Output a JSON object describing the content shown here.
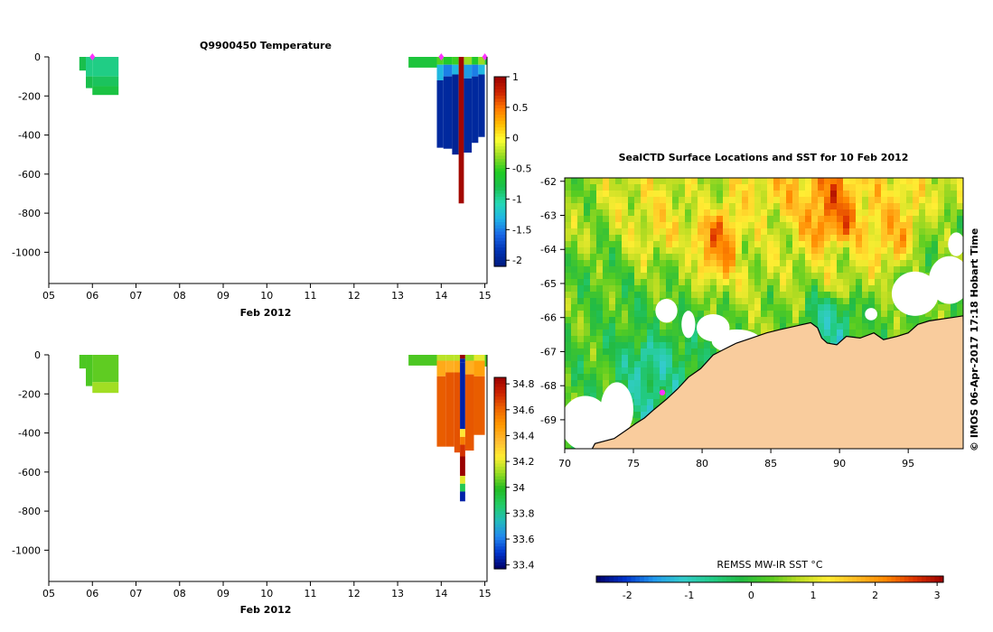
{
  "colors": {
    "temp_scale": [
      "#001a80",
      "#0033b3",
      "#1a66e6",
      "#1fb3e6",
      "#26d9b3",
      "#19bf4d",
      "#22cc22",
      "#99dd22",
      "#ffff33",
      "#ffbb00",
      "#ff7700",
      "#cc2200",
      "#990000"
    ],
    "salt_scale": [
      "#000066",
      "#0033cc",
      "#2288ee",
      "#22bbbb",
      "#22cc66",
      "#22bb22",
      "#99dd22",
      "#ffee33",
      "#ffbb33",
      "#ff9900",
      "#ee6600",
      "#cc2200",
      "#990000"
    ],
    "sst_scale": [
      "#000066",
      "#0033cc",
      "#2299ee",
      "#33cccc",
      "#22cc88",
      "#22bb44",
      "#55cc22",
      "#bbdd22",
      "#ffee33",
      "#ffbb22",
      "#ff8800",
      "#dd3300",
      "#990000"
    ],
    "land": "#f9cc9d",
    "cloud": "#ffffff",
    "marker": "#ff33ff"
  },
  "chart_data": [
    {
      "id": "temperature",
      "type": "heatmap",
      "title": "Q9900450  Temperature",
      "xlabel": "Feb 2012",
      "x_ticks": [
        "05",
        "06",
        "07",
        "08",
        "09",
        "10",
        "11",
        "12",
        "13",
        "14",
        "15"
      ],
      "xlim": [
        5,
        15.05
      ],
      "ylim": [
        -1160,
        0
      ],
      "y_ticks": [
        0,
        -200,
        -400,
        -600,
        -800,
        -1000
      ],
      "y_tick_labels": [
        "0",
        "-200",
        "-400",
        "-600",
        "-800",
        "-1000"
      ],
      "colorbar": {
        "min": -2.1,
        "max": 1,
        "ticks": [
          1,
          0.5,
          0,
          -0.5,
          -1,
          -1.5,
          -2
        ],
        "tick_labels": [
          "1",
          "0.5",
          "0",
          "-0.5",
          "-1",
          "-1.5",
          "-2"
        ]
      },
      "profile_markers_day": [
        6.0,
        14.0,
        15.0
      ],
      "profiles": [
        {
          "x0": 5.7,
          "x1": 5.85,
          "depth_max": 70,
          "segments": [
            [
              0,
              70,
              -0.8
            ]
          ]
        },
        {
          "x0": 5.85,
          "x1": 6.0,
          "depth_max": 160,
          "segments": [
            [
              0,
              100,
              -0.95
            ],
            [
              100,
              160,
              -0.8
            ]
          ]
        },
        {
          "x0": 6.0,
          "x1": 6.6,
          "depth_max": 195,
          "segments": [
            [
              0,
              100,
              -0.95
            ],
            [
              100,
              150,
              -0.85
            ],
            [
              150,
              195,
              -0.75
            ]
          ]
        },
        {
          "x0": 13.25,
          "x1": 13.9,
          "depth_max": 55,
          "segments": [
            [
              0,
              55,
              -0.7
            ]
          ]
        },
        {
          "x0": 13.9,
          "x1": 14.05,
          "depth_max": 465,
          "segments": [
            [
              0,
              40,
              -0.45
            ],
            [
              40,
              120,
              -1.3
            ],
            [
              120,
              465,
              -1.95
            ]
          ]
        },
        {
          "x0": 14.05,
          "x1": 14.25,
          "depth_max": 470,
          "segments": [
            [
              0,
              40,
              -0.6
            ],
            [
              40,
              100,
              -1.5
            ],
            [
              100,
              470,
              -1.95
            ]
          ]
        },
        {
          "x0": 14.25,
          "x1": 14.4,
          "depth_max": 500,
          "segments": [
            [
              0,
              40,
              -0.5
            ],
            [
              40,
              90,
              -1.3
            ],
            [
              90,
              500,
              -2.0
            ]
          ]
        },
        {
          "x0": 14.4,
          "x1": 14.52,
          "depth_max": 750,
          "segments": [
            [
              0,
              750,
              0.95
            ]
          ]
        },
        {
          "x0": 14.52,
          "x1": 14.7,
          "depth_max": 490,
          "segments": [
            [
              0,
              40,
              -0.3
            ],
            [
              40,
              110,
              -1.4
            ],
            [
              110,
              490,
              -1.95
            ]
          ]
        },
        {
          "x0": 14.7,
          "x1": 14.85,
          "depth_max": 440,
          "segments": [
            [
              0,
              40,
              -0.6
            ],
            [
              40,
              100,
              -1.5
            ],
            [
              100,
              440,
              -1.95
            ]
          ]
        },
        {
          "x0": 14.85,
          "x1": 15.0,
          "depth_max": 410,
          "segments": [
            [
              0,
              40,
              -0.3
            ],
            [
              40,
              90,
              -1.3
            ],
            [
              90,
              410,
              -1.95
            ]
          ]
        },
        {
          "x0": 15.0,
          "x1": 15.05,
          "depth_max": 40,
          "segments": [
            [
              0,
              40,
              -0.7
            ]
          ]
        }
      ]
    },
    {
      "id": "salinity",
      "type": "heatmap",
      "title": "",
      "xlabel": "Feb 2012",
      "x_ticks": [
        "05",
        "06",
        "07",
        "08",
        "09",
        "10",
        "11",
        "12",
        "13",
        "14",
        "15"
      ],
      "xlim": [
        5,
        15.05
      ],
      "ylim": [
        -1160,
        0
      ],
      "y_ticks": [
        0,
        -200,
        -400,
        -600,
        -800,
        -1000
      ],
      "y_tick_labels": [
        "0",
        "-200",
        "-400",
        "-600",
        "-800",
        "-1000"
      ],
      "colorbar": {
        "min": 33.37,
        "max": 34.85,
        "ticks": [
          34.8,
          34.6,
          34.4,
          34.2,
          34,
          33.8,
          33.6,
          33.4
        ],
        "tick_labels": [
          "34.8",
          "34.6",
          "34.4",
          "34.2",
          "34",
          "33.8",
          "33.6",
          "33.4"
        ]
      },
      "profiles": [
        {
          "x0": 5.7,
          "x1": 5.85,
          "depth_max": 70,
          "segments": [
            [
              0,
              70,
              34.03
            ]
          ]
        },
        {
          "x0": 5.85,
          "x1": 6.0,
          "depth_max": 160,
          "segments": [
            [
              0,
              160,
              34.03
            ]
          ]
        },
        {
          "x0": 6.0,
          "x1": 6.6,
          "depth_max": 195,
          "segments": [
            [
              0,
              140,
              34.05
            ],
            [
              140,
              195,
              34.12
            ]
          ]
        },
        {
          "x0": 13.25,
          "x1": 13.9,
          "depth_max": 55,
          "segments": [
            [
              0,
              55,
              34.03
            ]
          ]
        },
        {
          "x0": 13.9,
          "x1": 14.1,
          "depth_max": 470,
          "segments": [
            [
              0,
              30,
              34.15
            ],
            [
              30,
              110,
              34.42
            ],
            [
              110,
              470,
              34.62
            ]
          ]
        },
        {
          "x0": 14.1,
          "x1": 14.3,
          "depth_max": 470,
          "segments": [
            [
              0,
              30,
              34.15
            ],
            [
              30,
              90,
              34.4
            ],
            [
              90,
              470,
              34.63
            ]
          ]
        },
        {
          "x0": 14.3,
          "x1": 14.43,
          "depth_max": 500,
          "segments": [
            [
              0,
              30,
              34.15
            ],
            [
              30,
              90,
              34.42
            ],
            [
              90,
              500,
              34.64
            ]
          ]
        },
        {
          "x0": 14.43,
          "x1": 14.55,
          "depth_max": 750,
          "segments": [
            [
              0,
              20,
              34.85
            ],
            [
              20,
              40,
              33.45
            ],
            [
              40,
              380,
              33.45
            ],
            [
              380,
              420,
              34.25
            ],
            [
              420,
              460,
              34.55
            ],
            [
              460,
              520,
              34.7
            ],
            [
              520,
              620,
              34.85
            ],
            [
              620,
              660,
              34.2
            ],
            [
              660,
              700,
              33.9
            ],
            [
              700,
              750,
              33.45
            ]
          ]
        },
        {
          "x0": 14.55,
          "x1": 14.75,
          "depth_max": 490,
          "segments": [
            [
              0,
              30,
              34.1
            ],
            [
              30,
              100,
              34.4
            ],
            [
              100,
              490,
              34.63
            ]
          ]
        },
        {
          "x0": 14.75,
          "x1": 15.0,
          "depth_max": 410,
          "segments": [
            [
              0,
              30,
              34.2
            ],
            [
              30,
              110,
              34.45
            ],
            [
              110,
              410,
              34.62
            ]
          ]
        },
        {
          "x0": 15.0,
          "x1": 15.05,
          "depth_max": 60,
          "segments": [
            [
              0,
              60,
              34.03
            ]
          ]
        }
      ]
    },
    {
      "id": "sst_map",
      "type": "heatmap",
      "title": "SealCTD Surface Locations and SST for 10 Feb 2012",
      "xlim": [
        70,
        99
      ],
      "ylim": [
        -69.85,
        -61.9
      ],
      "x_ticks": [
        70,
        75,
        80,
        85,
        90,
        95
      ],
      "x_tick_labels": [
        "70",
        "75",
        "80",
        "85",
        "90",
        "95"
      ],
      "y_ticks": [
        -62,
        -63,
        -64,
        -65,
        -66,
        -67,
        -68,
        -69
      ],
      "y_tick_labels": [
        "-62",
        "-63",
        "-64",
        "-65",
        "-66",
        "-67",
        "-68",
        "-69"
      ],
      "sst_anchors": [
        {
          "lon": 70,
          "lat": -62,
          "v": 0.5
        },
        {
          "lon": 75,
          "lat": -62.2,
          "v": 1.0
        },
        {
          "lon": 80,
          "lat": -62.3,
          "v": 0.8
        },
        {
          "lon": 86,
          "lat": -62.3,
          "v": 1.5
        },
        {
          "lon": 93,
          "lat": -62.2,
          "v": 1.3
        },
        {
          "lon": 98,
          "lat": -62.2,
          "v": 1.0
        },
        {
          "lon": 71,
          "lat": -63.5,
          "v": 0.6
        },
        {
          "lon": 77,
          "lat": -63.3,
          "v": 1.2
        },
        {
          "lon": 81,
          "lat": -63.8,
          "v": 2.0
        },
        {
          "lon": 85,
          "lat": -63.5,
          "v": 0.9
        },
        {
          "lon": 89.5,
          "lat": -63,
          "v": 2.2
        },
        {
          "lon": 94,
          "lat": -63.4,
          "v": 1.6
        },
        {
          "lon": 98,
          "lat": -63.5,
          "v": 0.4
        },
        {
          "lon": 72,
          "lat": -64.8,
          "v": 0.2
        },
        {
          "lon": 78,
          "lat": -64.8,
          "v": 0.5
        },
        {
          "lon": 84,
          "lat": -64.6,
          "v": 0.8
        },
        {
          "lon": 90,
          "lat": -64.6,
          "v": 0.9
        },
        {
          "lon": 96,
          "lat": -64.8,
          "v": 0.3
        },
        {
          "lon": 71,
          "lat": -66,
          "v": 0.3
        },
        {
          "lon": 76,
          "lat": -66.2,
          "v": 0.1
        },
        {
          "lon": 80,
          "lat": -66.3,
          "v": 0.2
        },
        {
          "lon": 85,
          "lat": -65.8,
          "v": 0.5
        },
        {
          "lon": 89.5,
          "lat": -66.2,
          "v": -0.6
        },
        {
          "lon": 93,
          "lat": -66.3,
          "v": 0.3
        },
        {
          "lon": 72,
          "lat": -67.2,
          "v": 0.1
        },
        {
          "lon": 76,
          "lat": -67.3,
          "v": -0.8
        },
        {
          "lon": 79,
          "lat": -67,
          "v": -0.3
        },
        {
          "lon": 73,
          "lat": -68.3,
          "v": 0.0
        },
        {
          "lon": 76.5,
          "lat": -68.5,
          "v": -0.6
        },
        {
          "lon": 71,
          "lat": -69.3,
          "v": 0.4
        },
        {
          "lon": 74,
          "lat": -69.6,
          "v": 0.1
        }
      ],
      "clouds": [
        {
          "lon": 71.5,
          "lat": -69.1,
          "rlon": 1.8,
          "rlat": 0.8
        },
        {
          "lon": 73.8,
          "lat": -68.7,
          "rlon": 1.2,
          "rlat": 0.8
        },
        {
          "lon": 73.0,
          "lat": -69.55,
          "rlon": 1.5,
          "rlat": 0.35
        },
        {
          "lon": 77.4,
          "lat": -65.8,
          "rlon": 0.8,
          "rlat": 0.35
        },
        {
          "lon": 79.0,
          "lat": -66.2,
          "rlon": 0.5,
          "rlat": 0.4
        },
        {
          "lon": 80.8,
          "lat": -66.3,
          "rlon": 1.2,
          "rlat": 0.4
        },
        {
          "lon": 82.5,
          "lat": -66.7,
          "rlon": 1.8,
          "rlat": 0.35
        },
        {
          "lon": 95.5,
          "lat": -65.3,
          "rlon": 1.7,
          "rlat": 0.65
        },
        {
          "lon": 98.0,
          "lat": -64.9,
          "rlon": 1.5,
          "rlat": 0.7
        },
        {
          "lon": 92.3,
          "lat": -65.9,
          "rlon": 0.45,
          "rlat": 0.18
        },
        {
          "lon": 98.5,
          "lat": -63.85,
          "rlon": 0.6,
          "rlat": 0.35
        }
      ],
      "coast": [
        [
          72.0,
          -69.85
        ],
        [
          72.2,
          -69.7
        ],
        [
          73.6,
          -69.55
        ],
        [
          74.5,
          -69.3
        ],
        [
          75.2,
          -69.1
        ],
        [
          75.8,
          -68.95
        ],
        [
          76.5,
          -68.7
        ],
        [
          77.4,
          -68.4
        ],
        [
          78.2,
          -68.1
        ],
        [
          79.0,
          -67.75
        ],
        [
          79.9,
          -67.5
        ],
        [
          80.8,
          -67.1
        ],
        [
          81.5,
          -66.95
        ],
        [
          82.5,
          -66.75
        ],
        [
          83.6,
          -66.6
        ],
        [
          84.7,
          -66.45
        ],
        [
          85.7,
          -66.35
        ],
        [
          86.8,
          -66.25
        ],
        [
          87.9,
          -66.15
        ],
        [
          88.4,
          -66.3
        ],
        [
          88.7,
          -66.6
        ],
        [
          89.1,
          -66.75
        ],
        [
          89.8,
          -66.8
        ],
        [
          90.5,
          -66.55
        ],
        [
          91.5,
          -66.6
        ],
        [
          92.5,
          -66.45
        ],
        [
          93.2,
          -66.65
        ],
        [
          94.2,
          -66.55
        ],
        [
          95.0,
          -66.45
        ],
        [
          95.7,
          -66.2
        ],
        [
          96.5,
          -66.1
        ],
        [
          97.3,
          -66.05
        ],
        [
          98.2,
          -66.0
        ],
        [
          99.0,
          -65.95
        ]
      ],
      "seal_locations": [
        {
          "lon": 77.1,
          "lat": -68.2
        }
      ],
      "colorbar": {
        "label": "REMSS MW-IR SST °C",
        "min": -2.5,
        "max": 3.1,
        "ticks": [
          -2,
          -1,
          0,
          1,
          2,
          3
        ],
        "tick_labels": [
          "-2",
          "-1",
          "0",
          "1",
          "2",
          "3"
        ]
      }
    }
  ],
  "side_credit": "©  IMOS 06-Apr-2017 17:18 Hobart Time"
}
